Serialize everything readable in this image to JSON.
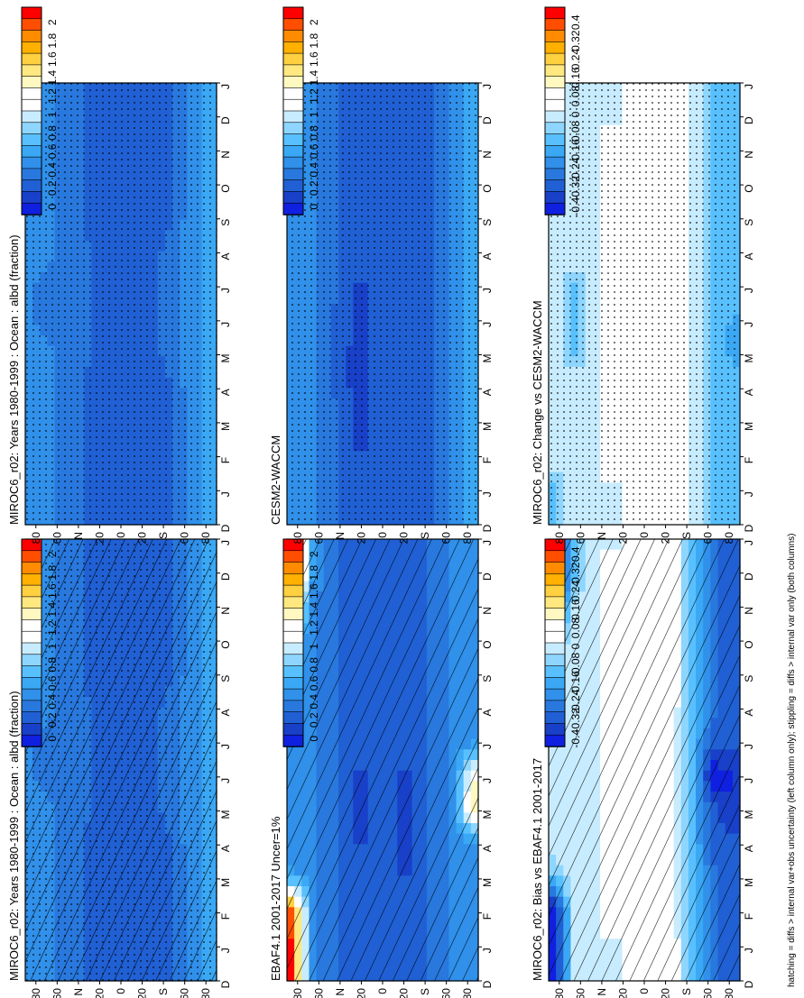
{
  "figure": {
    "footer": "hatching = diffs > internal var+obs uncertainty (left column only); stippling = diffs > internal var only (both columns)"
  },
  "time_axis": {
    "tick_labels": [
      "D",
      "J",
      "F",
      "M",
      "A",
      "M",
      "J",
      "J",
      "A",
      "S",
      "O",
      "N",
      "D",
      "J"
    ],
    "unit": "month"
  },
  "lat_axis": {
    "tick_values": [
      80,
      60,
      40,
      20,
      0,
      -20,
      -40,
      -60,
      -80
    ],
    "tick_labels": [
      "80",
      "60",
      "N",
      "20",
      "0",
      "20",
      "S",
      "60",
      "80"
    ],
    "range": [
      -90,
      90
    ]
  },
  "colorbars": {
    "abs": {
      "labels": [
        "2",
        "1.8",
        "1.6",
        "1.4",
        "1.2",
        "1",
        "0.8",
        "0.6",
        "0.4",
        "0.2",
        "0"
      ],
      "colors": [
        "#ff0000",
        "#ff4e00",
        "#ff8c00",
        "#ffb000",
        "#ffd040",
        "#ffe880",
        "#fff8c0",
        "#ffffff",
        "#ffffff",
        "#c8ecff",
        "#8ed6ff",
        "#58c0ff",
        "#3aa8f4",
        "#3090ea",
        "#2878de",
        "#2060d4",
        "#1840c8",
        "#1020e0"
      ]
    },
    "diff": {
      "labels": [
        "0.4",
        "0.32",
        "0.24",
        "0.16",
        "0.08",
        "0",
        "-0.08",
        "-0.16",
        "-0.24",
        "-0.32",
        "-0.4"
      ],
      "colors": [
        "#ff0000",
        "#ff4e00",
        "#ff8c00",
        "#ffb000",
        "#ffd040",
        "#ffe880",
        "#fff8c0",
        "#ffffff",
        "#ffffff",
        "#c8ecff",
        "#8ed6ff",
        "#58c0ff",
        "#3aa8f4",
        "#3090ea",
        "#2878de",
        "#2060d4",
        "#1840c8",
        "#1020e0"
      ]
    }
  },
  "panels": [
    {
      "title": "MIROC6_r02: Years 1980-1999 : Ocean : albd (fraction)",
      "colorbar": "abs",
      "overlay": "hatch+stipple"
    },
    {
      "title": "MIROC6_r02: Years 1980-1999 : Ocean : albd (fraction)",
      "colorbar": "abs",
      "overlay": "stipple"
    },
    {
      "title": "EBAF4.1 2001-2017 Uncer=1%",
      "colorbar": "abs",
      "overlay": "hatch"
    },
    {
      "title": "CESM2-WACCM",
      "colorbar": "abs",
      "overlay": "stipple"
    },
    {
      "title": "MIROC6_r02: Bias vs EBAF4.1 2001-2017",
      "colorbar": "diff",
      "overlay": "hatch"
    },
    {
      "title": "MIROC6_r02: Change vs CESM2-WACCM",
      "colorbar": "diff",
      "overlay": "stipple"
    }
  ],
  "chart_data": [
    {
      "type": "heatmap",
      "title": "MIROC6_r02: Years 1980-1999 : Ocean : albd (fraction)",
      "x": [
        "D",
        "J",
        "F",
        "M",
        "A",
        "M",
        "J",
        "J",
        "A",
        "S",
        "O",
        "N",
        "D",
        "J"
      ],
      "y": [
        -80,
        -60,
        -40,
        -20,
        0,
        20,
        40,
        60,
        80
      ],
      "scale_range": [
        0,
        2
      ],
      "values": [
        [
          0.6,
          0.6,
          0.6,
          0.6,
          0.6,
          0.6,
          0.6,
          0.6,
          0.6,
          0.6,
          0.6,
          0.6,
          0.6,
          0.6
        ],
        [
          0.5,
          0.5,
          0.5,
          0.5,
          0.5,
          0.5,
          0.5,
          0.5,
          0.5,
          0.5,
          0.5,
          0.5,
          0.5,
          0.5
        ],
        [
          0.3,
          0.3,
          0.3,
          0.3,
          0.3,
          0.35,
          0.35,
          0.35,
          0.35,
          0.3,
          0.3,
          0.3,
          0.3,
          0.3
        ],
        [
          0.3,
          0.3,
          0.3,
          0.3,
          0.3,
          0.3,
          0.3,
          0.3,
          0.3,
          0.3,
          0.3,
          0.3,
          0.3,
          0.3
        ],
        [
          0.3,
          0.3,
          0.3,
          0.3,
          0.3,
          0.3,
          0.3,
          0.3,
          0.3,
          0.3,
          0.3,
          0.3,
          0.3,
          0.3
        ],
        [
          0.3,
          0.3,
          0.3,
          0.3,
          0.3,
          0.3,
          0.3,
          0.3,
          0.3,
          0.3,
          0.3,
          0.3,
          0.3,
          0.3
        ],
        [
          0.35,
          0.35,
          0.35,
          0.35,
          0.35,
          0.4,
          0.4,
          0.4,
          0.4,
          0.35,
          0.35,
          0.35,
          0.35,
          0.35
        ],
        [
          0.45,
          0.45,
          0.45,
          0.45,
          0.45,
          0.45,
          0.4,
          0.4,
          0.45,
          0.45,
          0.45,
          0.45,
          0.45,
          0.45
        ],
        [
          0.5,
          0.5,
          0.5,
          0.5,
          0.5,
          0.5,
          0.45,
          0.45,
          0.5,
          0.5,
          0.5,
          0.5,
          0.5,
          0.5
        ]
      ]
    },
    {
      "type": "heatmap",
      "title": "MIROC6_r02: Years 1980-1999 : Ocean : albd (fraction)",
      "x": [
        "D",
        "J",
        "F",
        "M",
        "A",
        "M",
        "J",
        "J",
        "A",
        "S",
        "O",
        "N",
        "D",
        "J"
      ],
      "y": [
        -80,
        -60,
        -40,
        -20,
        0,
        20,
        40,
        60,
        80
      ],
      "scale_range": [
        0,
        2
      ],
      "values": [
        [
          0.6,
          0.6,
          0.6,
          0.6,
          0.6,
          0.6,
          0.6,
          0.6,
          0.6,
          0.6,
          0.6,
          0.6,
          0.6,
          0.6
        ],
        [
          0.5,
          0.5,
          0.5,
          0.5,
          0.5,
          0.5,
          0.5,
          0.5,
          0.5,
          0.5,
          0.5,
          0.5,
          0.5,
          0.5
        ],
        [
          0.3,
          0.3,
          0.3,
          0.3,
          0.3,
          0.35,
          0.35,
          0.35,
          0.35,
          0.3,
          0.3,
          0.3,
          0.3,
          0.3
        ],
        [
          0.3,
          0.3,
          0.3,
          0.3,
          0.3,
          0.3,
          0.3,
          0.3,
          0.3,
          0.3,
          0.3,
          0.3,
          0.3,
          0.3
        ],
        [
          0.3,
          0.3,
          0.3,
          0.3,
          0.3,
          0.3,
          0.3,
          0.3,
          0.3,
          0.3,
          0.3,
          0.3,
          0.3,
          0.3
        ],
        [
          0.3,
          0.3,
          0.3,
          0.3,
          0.3,
          0.3,
          0.3,
          0.3,
          0.3,
          0.3,
          0.3,
          0.3,
          0.3,
          0.3
        ],
        [
          0.35,
          0.35,
          0.35,
          0.35,
          0.35,
          0.4,
          0.4,
          0.4,
          0.4,
          0.35,
          0.35,
          0.35,
          0.35,
          0.35
        ],
        [
          0.45,
          0.45,
          0.45,
          0.45,
          0.45,
          0.45,
          0.4,
          0.4,
          0.45,
          0.45,
          0.45,
          0.45,
          0.45,
          0.45
        ],
        [
          0.5,
          0.5,
          0.5,
          0.5,
          0.5,
          0.5,
          0.45,
          0.45,
          0.5,
          0.5,
          0.5,
          0.5,
          0.5,
          0.5
        ]
      ]
    },
    {
      "type": "heatmap",
      "title": "EBAF4.1 2001-2017 Uncer=1%",
      "x": [
        "D",
        "J",
        "F",
        "M",
        "A",
        "M",
        "J",
        "J",
        "A",
        "S",
        "O",
        "N",
        "D",
        "J"
      ],
      "y": [
        -80,
        -60,
        -40,
        -20,
        0,
        20,
        40,
        60,
        80
      ],
      "scale_range": [
        0,
        2
      ],
      "values": [
        [
          0.55,
          0.55,
          0.55,
          0.55,
          0.55,
          1.3,
          1.2,
          0.55,
          0.55,
          0.55,
          0.55,
          0.55,
          0.55,
          0.55
        ],
        [
          0.45,
          0.45,
          0.45,
          0.45,
          0.45,
          0.45,
          0.45,
          0.45,
          0.45,
          0.45,
          0.45,
          0.45,
          0.45,
          0.45
        ],
        [
          0.35,
          0.35,
          0.35,
          0.35,
          0.35,
          0.35,
          0.35,
          0.35,
          0.35,
          0.35,
          0.35,
          0.35,
          0.35,
          0.35
        ],
        [
          0.25,
          0.25,
          0.25,
          0.2,
          0.2,
          0.2,
          0.2,
          0.25,
          0.25,
          0.25,
          0.25,
          0.25,
          0.25,
          0.25
        ],
        [
          0.3,
          0.3,
          0.3,
          0.3,
          0.3,
          0.3,
          0.3,
          0.3,
          0.3,
          0.3,
          0.3,
          0.3,
          0.3,
          0.3
        ],
        [
          0.25,
          0.25,
          0.25,
          0.25,
          0.2,
          0.2,
          0.2,
          0.25,
          0.25,
          0.25,
          0.25,
          0.25,
          0.25,
          0.25
        ],
        [
          0.35,
          0.35,
          0.35,
          0.35,
          0.35,
          0.35,
          0.35,
          0.35,
          0.35,
          0.35,
          0.35,
          0.35,
          0.35,
          0.35
        ],
        [
          0.45,
          0.45,
          0.45,
          0.45,
          0.45,
          0.45,
          0.45,
          0.45,
          0.45,
          0.45,
          0.45,
          0.45,
          0.5,
          0.5
        ],
        [
          1.9,
          1.9,
          1.8,
          0.6,
          0.5,
          0.5,
          0.5,
          0.5,
          0.5,
          0.5,
          0.6,
          1.2,
          1.9,
          1.9
        ]
      ]
    },
    {
      "type": "heatmap",
      "title": "CESM2-WACCM",
      "x": [
        "D",
        "J",
        "F",
        "M",
        "A",
        "M",
        "J",
        "J",
        "A",
        "S",
        "O",
        "N",
        "D",
        "J"
      ],
      "y": [
        -80,
        -60,
        -40,
        -20,
        0,
        20,
        40,
        60,
        80
      ],
      "scale_range": [
        0,
        2
      ],
      "values": [
        [
          0.6,
          0.6,
          0.6,
          0.6,
          0.6,
          0.6,
          0.6,
          0.6,
          0.6,
          0.6,
          0.6,
          0.6,
          0.6,
          0.6
        ],
        [
          0.5,
          0.5,
          0.5,
          0.5,
          0.5,
          0.5,
          0.5,
          0.5,
          0.5,
          0.5,
          0.5,
          0.5,
          0.5,
          0.5
        ],
        [
          0.3,
          0.25,
          0.3,
          0.3,
          0.3,
          0.3,
          0.3,
          0.3,
          0.3,
          0.3,
          0.3,
          0.3,
          0.3,
          0.3
        ],
        [
          0.3,
          0.3,
          0.3,
          0.3,
          0.3,
          0.3,
          0.3,
          0.3,
          0.3,
          0.3,
          0.3,
          0.3,
          0.3,
          0.3
        ],
        [
          0.3,
          0.3,
          0.3,
          0.3,
          0.3,
          0.3,
          0.3,
          0.3,
          0.3,
          0.3,
          0.3,
          0.3,
          0.3,
          0.3
        ],
        [
          0.25,
          0.25,
          0.2,
          0.2,
          0.15,
          0.15,
          0.2,
          0.2,
          0.25,
          0.25,
          0.25,
          0.25,
          0.25,
          0.25
        ],
        [
          0.35,
          0.35,
          0.35,
          0.35,
          0.3,
          0.3,
          0.3,
          0.35,
          0.35,
          0.35,
          0.35,
          0.35,
          0.35,
          0.35
        ],
        [
          0.45,
          0.45,
          0.45,
          0.45,
          0.45,
          0.45,
          0.45,
          0.45,
          0.45,
          0.45,
          0.45,
          0.45,
          0.45,
          0.45
        ],
        [
          0.5,
          0.5,
          0.5,
          0.5,
          0.5,
          0.5,
          0.5,
          0.5,
          0.5,
          0.5,
          0.5,
          0.5,
          0.5,
          0.5
        ]
      ]
    },
    {
      "type": "heatmap",
      "title": "MIROC6_r02: Bias vs EBAF4.1 2001-2017",
      "x": [
        "D",
        "J",
        "F",
        "M",
        "A",
        "M",
        "J",
        "J",
        "A",
        "S",
        "O",
        "N",
        "D",
        "J"
      ],
      "y": [
        -80,
        -60,
        -40,
        -20,
        0,
        20,
        40,
        60,
        80
      ],
      "scale_range": [
        -0.4,
        0.4
      ],
      "values": [
        [
          -0.3,
          -0.3,
          -0.3,
          -0.3,
          -0.3,
          -0.35,
          -0.35,
          -0.3,
          -0.3,
          -0.3,
          -0.3,
          -0.3,
          -0.3,
          -0.3
        ],
        [
          -0.25,
          -0.25,
          -0.25,
          -0.25,
          -0.3,
          -0.3,
          -0.4,
          -0.3,
          -0.25,
          -0.25,
          -0.25,
          -0.25,
          -0.25,
          -0.25
        ],
        [
          -0.1,
          -0.1,
          -0.1,
          -0.1,
          -0.1,
          -0.1,
          -0.1,
          -0.1,
          -0.1,
          -0.1,
          -0.1,
          -0.1,
          -0.1,
          -0.1
        ],
        [
          0.08,
          0.08,
          0.04,
          0.04,
          0.04,
          0.04,
          0.04,
          0.04,
          0.08,
          0.08,
          0.08,
          0.08,
          0.08,
          0.08
        ],
        [
          0.08,
          0.08,
          0.08,
          0.04,
          0.04,
          0.08,
          0.08,
          0.08,
          0.08,
          0.08,
          0.08,
          0.08,
          0.08,
          0.08
        ],
        [
          0.0,
          0.0,
          0.04,
          0.04,
          0.08,
          0.08,
          0.08,
          0.08,
          0.08,
          0.08,
          0.08,
          0.08,
          0.08,
          0.0
        ],
        [
          0.0,
          0.0,
          0.0,
          0.0,
          0.0,
          0.0,
          0.0,
          0.0,
          0.0,
          0.0,
          0.0,
          0.0,
          0.0,
          0.0
        ],
        [
          0.0,
          0.0,
          0.0,
          0.0,
          0.0,
          0.0,
          0.0,
          0.0,
          0.0,
          0.0,
          0.0,
          0.0,
          -0.1,
          -0.1
        ],
        [
          -0.4,
          -0.4,
          -0.4,
          -0.1,
          0.0,
          0.0,
          0.0,
          0.0,
          0.0,
          0.0,
          -0.1,
          -0.3,
          -0.4,
          -0.4
        ]
      ]
    },
    {
      "type": "heatmap",
      "title": "MIROC6_r02: Change vs CESM2-WACCM",
      "x": [
        "D",
        "J",
        "F",
        "M",
        "A",
        "M",
        "J",
        "J",
        "A",
        "S",
        "O",
        "N",
        "D",
        "J"
      ],
      "y": [
        -80,
        -60,
        -40,
        -20,
        0,
        20,
        40,
        60,
        80
      ],
      "scale_range": [
        -0.4,
        0.4
      ],
      "values": [
        [
          -0.1,
          -0.1,
          -0.1,
          -0.1,
          -0.1,
          -0.15,
          -0.15,
          -0.1,
          -0.1,
          -0.1,
          -0.1,
          -0.1,
          -0.1,
          -0.1
        ],
        [
          -0.1,
          -0.1,
          -0.1,
          -0.1,
          -0.1,
          -0.1,
          -0.1,
          -0.1,
          -0.1,
          -0.1,
          -0.1,
          -0.1,
          -0.1,
          -0.1
        ],
        [
          0.0,
          0.0,
          0.0,
          0.0,
          0.0,
          0.0,
          0.0,
          0.0,
          0.0,
          0.0,
          0.0,
          0.0,
          0.0,
          0.0
        ],
        [
          0.04,
          0.04,
          0.04,
          0.04,
          0.04,
          0.04,
          0.04,
          0.04,
          0.04,
          0.04,
          0.04,
          0.04,
          0.04,
          0.04
        ],
        [
          0.04,
          0.04,
          0.04,
          0.04,
          0.04,
          0.04,
          0.04,
          0.04,
          0.04,
          0.04,
          0.04,
          0.04,
          0.04,
          0.04
        ],
        [
          0.0,
          0.0,
          0.04,
          0.04,
          0.08,
          0.08,
          0.04,
          0.04,
          0.04,
          0.04,
          0.04,
          0.04,
          0.0,
          0.0
        ],
        [
          0.0,
          0.0,
          0.0,
          0.0,
          0.0,
          0.0,
          0.0,
          0.0,
          0.0,
          0.0,
          0.0,
          0.0,
          0.0,
          0.0
        ],
        [
          0.0,
          0.0,
          0.0,
          0.0,
          0.0,
          -0.1,
          -0.1,
          -0.1,
          0.0,
          0.0,
          0.0,
          0.0,
          0.0,
          0.0
        ],
        [
          -0.1,
          -0.1,
          0.0,
          0.0,
          0.0,
          0.0,
          0.0,
          0.0,
          0.0,
          0.0,
          0.0,
          0.0,
          -0.1,
          -0.1
        ]
      ]
    }
  ]
}
